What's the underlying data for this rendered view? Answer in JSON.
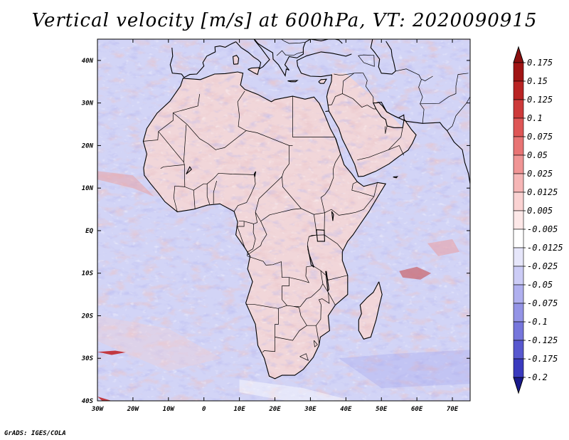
{
  "figure": {
    "title": "Vertical velocity [m/s] at 600hPa, VT: 2020090915",
    "footer": "GrADS: IGES/COLA"
  },
  "map": {
    "variable": "Vertical velocity",
    "units": "m/s",
    "level": "600hPa",
    "valid_time": "2020090915",
    "lon_range": [
      -30,
      75
    ],
    "lat_range": [
      -40,
      45
    ],
    "lon_ticks": [
      {
        "value": -30,
        "label": "30W"
      },
      {
        "value": -20,
        "label": "20W"
      },
      {
        "value": -10,
        "label": "10W"
      },
      {
        "value": 0,
        "label": "0"
      },
      {
        "value": 10,
        "label": "10E"
      },
      {
        "value": 20,
        "label": "20E"
      },
      {
        "value": 30,
        "label": "30E"
      },
      {
        "value": 40,
        "label": "40E"
      },
      {
        "value": 50,
        "label": "50E"
      },
      {
        "value": 60,
        "label": "60E"
      },
      {
        "value": 70,
        "label": "70E"
      }
    ],
    "lat_ticks": [
      {
        "value": 40,
        "label": "40N"
      },
      {
        "value": 30,
        "label": "30N"
      },
      {
        "value": 20,
        "label": "20N"
      },
      {
        "value": 10,
        "label": "10N"
      },
      {
        "value": 0,
        "label": "EQ"
      },
      {
        "value": -10,
        "label": "10S"
      },
      {
        "value": -20,
        "label": "20S"
      },
      {
        "value": -30,
        "label": "30S"
      },
      {
        "value": -40,
        "label": "40S"
      }
    ]
  },
  "colorbar": {
    "levels": [
      {
        "label": "0.175",
        "color": "#a01414"
      },
      {
        "label": "0.15",
        "color": "#b92424"
      },
      {
        "label": "0.125",
        "color": "#cd3a3a"
      },
      {
        "label": "0.1",
        "color": "#de5656"
      },
      {
        "label": "0.075",
        "color": "#e87474"
      },
      {
        "label": "0.05",
        "color": "#f09595"
      },
      {
        "label": "0.025",
        "color": "#f6b6b6"
      },
      {
        "label": "0.0125",
        "color": "#fad2d2"
      },
      {
        "label": "0.005",
        "color": "#fde8e8"
      },
      {
        "label": "-0.005",
        "color": "#ffffff"
      },
      {
        "label": "-0.0125",
        "color": "#e6e6fa"
      },
      {
        "label": "-0.025",
        "color": "#ccccf6"
      },
      {
        "label": "-0.05",
        "color": "#b0b0ef"
      },
      {
        "label": "-0.075",
        "color": "#9494e6"
      },
      {
        "label": "-0.1",
        "color": "#7676dc"
      },
      {
        "label": "-0.125",
        "color": "#5858cf"
      },
      {
        "label": "-0.175",
        "color": "#3a3abe"
      },
      {
        "label": "-0.2",
        "color": "#2323a6"
      }
    ],
    "top_arrow_color": "#8b0f0f",
    "bottom_arrow_color": "#1a1a8c"
  },
  "colors": {
    "ocean_base": "#d2d4f6",
    "land_base": "#f4d6d6",
    "coast": "#000000"
  }
}
